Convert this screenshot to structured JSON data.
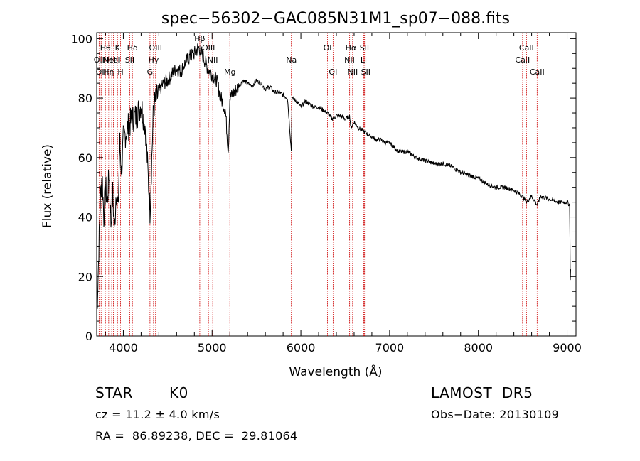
{
  "chart_data": {
    "type": "line",
    "title": "spec−56302−GAC085N31M1_sp07−088.fits",
    "xlabel": "Wavelength (Å)",
    "ylabel": "Flux (relative)",
    "xlim": [
      3700,
      9100
    ],
    "ylim": [
      0,
      102
    ],
    "xticks": [
      4000,
      5000,
      6000,
      7000,
      8000,
      9000
    ],
    "yticks": [
      0,
      20,
      40,
      60,
      80,
      100
    ],
    "grid": false,
    "series": [
      {
        "x": [
          3700,
          3720,
          3740,
          3760,
          3780,
          3800,
          3820,
          3840,
          3860,
          3880,
          3900,
          3920,
          3940,
          3960,
          3980,
          4000,
          4050,
          4100,
          4150,
          4200,
          4250,
          4300,
          4340,
          4400,
          4450,
          4500,
          4550,
          4600,
          4650,
          4700,
          4750,
          4800,
          4850,
          4900,
          4950,
          5000,
          5050,
          5100,
          5150,
          5183,
          5200,
          5250,
          5300,
          5350,
          5400,
          5450,
          5500,
          5550,
          5600,
          5650,
          5700,
          5750,
          5800,
          5850,
          5893,
          5900,
          5950,
          6000,
          6050,
          6100,
          6150,
          6200,
          6250,
          6300,
          6350,
          6400,
          6450,
          6500,
          6550,
          6563,
          6600,
          6650,
          6700,
          6750,
          6800,
          6850,
          6900,
          6950,
          7000,
          7100,
          7200,
          7300,
          7400,
          7500,
          7600,
          7700,
          7800,
          7900,
          8000,
          8100,
          8200,
          8300,
          8400,
          8498,
          8542,
          8600,
          8662,
          8700,
          8800,
          8900,
          9000,
          9030,
          9035,
          9040
        ],
        "y": [
          5,
          25,
          45,
          55,
          40,
          50,
          45,
          55,
          38,
          48,
          35,
          50,
          42,
          65,
          55,
          66,
          70,
          73,
          74,
          78,
          70,
          42,
          77,
          82,
          85,
          86,
          88,
          90,
          89,
          92,
          94,
          95,
          97,
          94,
          90,
          88,
          86,
          80,
          76,
          62,
          80,
          82,
          84,
          86,
          85,
          84,
          86,
          85,
          83,
          84,
          82,
          82,
          81,
          80,
          62,
          80,
          79,
          77,
          79,
          78,
          77,
          77,
          76,
          75,
          73,
          74,
          74,
          73,
          74,
          70,
          72,
          70,
          69,
          68,
          67,
          66,
          66,
          65,
          65,
          62,
          62,
          60,
          59,
          58,
          58,
          57,
          55,
          54,
          53,
          51,
          50,
          50,
          49,
          47,
          45,
          47,
          44,
          47,
          46,
          45,
          45,
          44,
          18,
          22
        ]
      }
    ],
    "lines": [
      {
        "wl": 3727,
        "label": "OII",
        "row": 2
      },
      {
        "wl": 3750,
        "label": "OII",
        "row": 3
      },
      {
        "wl": 3798,
        "label": "Hθ",
        "row": 1
      },
      {
        "wl": 3835,
        "label": "Hη",
        "row": 3
      },
      {
        "wl": 3869,
        "label": "NeIII",
        "row": 2
      },
      {
        "wl": 3889,
        "label": "HeI",
        "row": 2
      },
      {
        "wl": 3934,
        "label": "K",
        "row": 1
      },
      {
        "wl": 3969,
        "label": "H",
        "row": 3
      },
      {
        "wl": 4072,
        "label": "SII",
        "row": 2
      },
      {
        "wl": 4102,
        "label": "Hδ",
        "row": 1
      },
      {
        "wl": 4300,
        "label": "G",
        "row": 3
      },
      {
        "wl": 4340,
        "label": "Hγ",
        "row": 2
      },
      {
        "wl": 4363,
        "label": "OIII",
        "row": 1
      },
      {
        "wl": 4861,
        "label": "Hβ",
        "row": 0
      },
      {
        "wl": 4959,
        "label": "OIII",
        "row": 1
      },
      {
        "wl": 5007,
        "label": "NII",
        "row": 2
      },
      {
        "wl": 5200,
        "label": "Mg",
        "row": 3
      },
      {
        "wl": 5893,
        "label": "Na",
        "row": 2
      },
      {
        "wl": 6300,
        "label": "OI",
        "row": 1
      },
      {
        "wl": 6363,
        "label": "OI",
        "row": 3
      },
      {
        "wl": 6548,
        "label": "NII",
        "row": 2
      },
      {
        "wl": 6563,
        "label": "Hα",
        "row": 1
      },
      {
        "wl": 6583,
        "label": "NII",
        "row": 3
      },
      {
        "wl": 6708,
        "label": "Li",
        "row": 2
      },
      {
        "wl": 6716,
        "label": "SII",
        "row": 1
      },
      {
        "wl": 6731,
        "label": "SII",
        "row": 3
      },
      {
        "wl": 8498,
        "label": "CaII",
        "row": 2
      },
      {
        "wl": 8542,
        "label": "CaII",
        "row": 1
      },
      {
        "wl": 8662,
        "label": "CaII",
        "row": 3
      }
    ]
  },
  "info": {
    "class": "STAR",
    "subclass": "K0",
    "survey": "LAMOST  DR5",
    "cz": "cz = 11.2 ± 4.0 km/s",
    "obs_date": "Obs−Date: 20130109",
    "coords": "RA =  86.89238, DEC =  29.81064"
  },
  "colors": {
    "line_marker": "#cc0000",
    "spectrum": "#000000"
  }
}
